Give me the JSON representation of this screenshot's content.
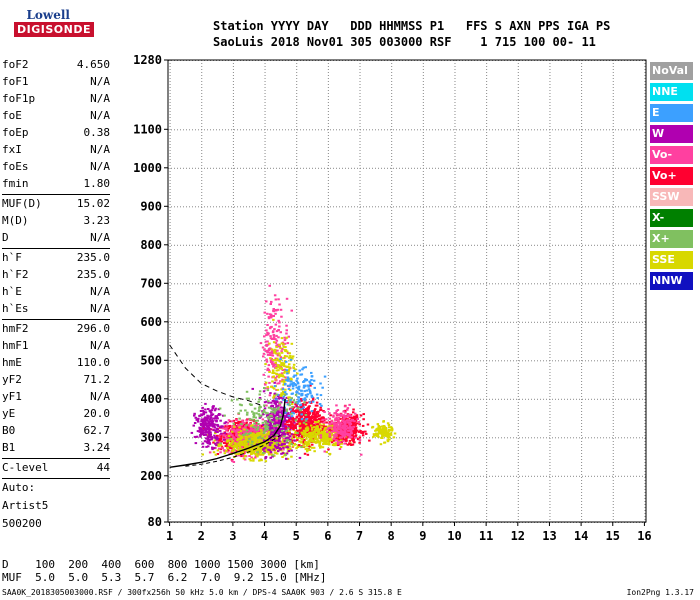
{
  "logo": {
    "line1": "Lowell",
    "line2": "DIGISONDE"
  },
  "header": {
    "row1": "Station YYYY DAY   DDD HHMMSS P1   FFS S AXN PPS IGA PS",
    "row2": "SaoLuis 2018 Nov01 305 003000 RSF    1 715 100 00- 11"
  },
  "params_group1": [
    {
      "name": "foF2",
      "value": "4.650"
    },
    {
      "name": "foF1",
      "value": "N/A"
    },
    {
      "name": "foF1p",
      "value": "N/A"
    },
    {
      "name": "foE",
      "value": "N/A"
    },
    {
      "name": "foEp",
      "value": "0.38"
    },
    {
      "name": "fxI",
      "value": "N/A"
    },
    {
      "name": "foEs",
      "value": "N/A"
    },
    {
      "name": "fmin",
      "value": "1.80"
    }
  ],
  "params_group2": [
    {
      "name": "MUF(D)",
      "value": "15.02"
    },
    {
      "name": "M(D)",
      "value": "3.23"
    },
    {
      "name": "D",
      "value": "N/A"
    }
  ],
  "params_group3": [
    {
      "name": "h`F",
      "value": "235.0"
    },
    {
      "name": "h`F2",
      "value": "235.0"
    },
    {
      "name": "h`E",
      "value": "N/A"
    },
    {
      "name": "h`Es",
      "value": "N/A"
    }
  ],
  "params_group4": [
    {
      "name": "hmF2",
      "value": "296.0"
    },
    {
      "name": "hmF1",
      "value": "N/A"
    },
    {
      "name": "hmE",
      "value": "110.0"
    },
    {
      "name": "yF2",
      "value": "71.2"
    },
    {
      "name": "yF1",
      "value": "N/A"
    },
    {
      "name": "yE",
      "value": "20.0"
    },
    {
      "name": "B0",
      "value": "62.7"
    },
    {
      "name": "B1",
      "value": "3.24"
    }
  ],
  "clevel": {
    "name": "C-level",
    "value": "44"
  },
  "autoscale": [
    "Auto:",
    "Artist5",
    "500200"
  ],
  "legend": [
    {
      "label": "NoVal",
      "color": "#a0a0a0"
    },
    {
      "label": "NNE",
      "color": "#00e0f0"
    },
    {
      "label": "E",
      "color": "#3ca0ff"
    },
    {
      "label": "W",
      "color": "#b000b0"
    },
    {
      "label": "Vo-",
      "color": "#ff40a0"
    },
    {
      "label": "Vo+",
      "color": "#ff0030"
    },
    {
      "label": "SSW",
      "color": "#f8b8b8"
    },
    {
      "label": "X-",
      "color": "#008000"
    },
    {
      "label": "X+",
      "color": "#80c060"
    },
    {
      "label": "SSE",
      "color": "#d8d800"
    },
    {
      "label": "NNW",
      "color": "#1010c0"
    }
  ],
  "muf_table": {
    "row1": "D    100  200  400  600  800 1000 1500 3000 [km]",
    "row2": "MUF  5.0  5.0  5.3  5.7  6.2  7.0  9.2 15.0 [MHz]"
  },
  "footer": "SAA0K_2018305003000.RSF / 300fx256h 50 kHz 5.0 km / DPS-4 SAA0K 903 / 2.6 S 315.8 E",
  "version": "Ion2Png 1.3.17",
  "chart_data": {
    "type": "scatter",
    "x_ticks": [
      1,
      2,
      3,
      4,
      5,
      6,
      7,
      8,
      9,
      10,
      11,
      12,
      13,
      14,
      15,
      16
    ],
    "y_ticks": [
      80,
      200,
      300,
      400,
      500,
      600,
      700,
      800,
      900,
      1000,
      1100,
      1280
    ],
    "xlim": [
      0.95,
      16.05
    ],
    "ylim": [
      80,
      1280
    ],
    "grid": true,
    "legend_position": "right",
    "ordinary_trace": [
      [
        1.0,
        222
      ],
      [
        1.5,
        228
      ],
      [
        2.0,
        235
      ],
      [
        2.5,
        245
      ],
      [
        3.0,
        258
      ],
      [
        3.5,
        272
      ],
      [
        4.0,
        288
      ],
      [
        4.3,
        305
      ],
      [
        4.5,
        330
      ],
      [
        4.6,
        360
      ],
      [
        4.65,
        400
      ]
    ],
    "extraordinary_trace": [
      [
        1.5,
        225
      ],
      [
        2.0,
        230
      ],
      [
        2.5,
        238
      ],
      [
        3.0,
        248
      ],
      [
        3.5,
        262
      ],
      [
        4.0,
        280
      ],
      [
        4.5,
        305
      ]
    ],
    "x_trace_dashed": [
      [
        1.0,
        540
      ],
      [
        1.5,
        480
      ],
      [
        2.0,
        440
      ],
      [
        2.5,
        420
      ],
      [
        3.0,
        405
      ],
      [
        3.5,
        395
      ],
      [
        4.0,
        380
      ]
    ],
    "clusters": [
      {
        "cx": 3.3,
        "cy": 305,
        "sx": 0.6,
        "sy": 30,
        "n": 700,
        "color": "#ff0030"
      },
      {
        "cx": 3.6,
        "cy": 300,
        "sx": 0.8,
        "sy": 35,
        "n": 500,
        "color": "#ff40a0"
      },
      {
        "cx": 3.8,
        "cy": 285,
        "sx": 0.9,
        "sy": 30,
        "n": 500,
        "color": "#d8d800"
      },
      {
        "cx": 4.4,
        "cy": 340,
        "sx": 0.4,
        "sy": 70,
        "n": 350,
        "color": "#b000b0"
      },
      {
        "cx": 5.3,
        "cy": 340,
        "sx": 0.5,
        "sy": 45,
        "n": 450,
        "color": "#ff0030"
      },
      {
        "cx": 5.8,
        "cy": 305,
        "sx": 0.6,
        "sy": 25,
        "n": 350,
        "color": "#d8d800"
      },
      {
        "cx": 6.6,
        "cy": 325,
        "sx": 0.35,
        "sy": 30,
        "n": 320,
        "color": "#ff0030"
      },
      {
        "cx": 6.4,
        "cy": 330,
        "sx": 0.4,
        "sy": 40,
        "n": 200,
        "color": "#ff40a0"
      },
      {
        "cx": 7.7,
        "cy": 315,
        "sx": 0.25,
        "sy": 18,
        "n": 120,
        "color": "#d8d800"
      },
      {
        "cx": 2.2,
        "cy": 330,
        "sx": 0.35,
        "sy": 40,
        "n": 220,
        "color": "#b000b0"
      },
      {
        "cx": 4.3,
        "cy": 540,
        "sx": 0.35,
        "sy": 110,
        "n": 180,
        "color": "#ff40a0"
      },
      {
        "cx": 4.5,
        "cy": 480,
        "sx": 0.35,
        "sy": 70,
        "n": 140,
        "color": "#d8d800"
      },
      {
        "cx": 5.0,
        "cy": 420,
        "sx": 0.6,
        "sy": 50,
        "n": 140,
        "color": "#3ca0ff"
      },
      {
        "cx": 4.0,
        "cy": 350,
        "sx": 1.0,
        "sy": 60,
        "n": 160,
        "color": "#80c060"
      }
    ]
  }
}
